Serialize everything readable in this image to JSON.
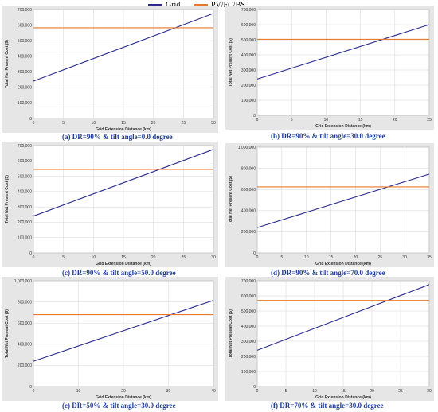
{
  "legend": {
    "series": [
      {
        "name": "Grid",
        "color": "#2b2b8c"
      },
      {
        "name": "PV/FC/BS",
        "color": "#e8792a"
      }
    ]
  },
  "chart_data": [
    {
      "type": "line",
      "caption": "(a) DR=90% & tilt angle=0.0 degree",
      "xlabel": "Grid Extension Distance (km)",
      "ylabel": "Total Net Present Cost ($)",
      "xlim": [
        0,
        30
      ],
      "xticks": [
        0,
        5,
        10,
        15,
        20,
        25,
        30
      ],
      "ylim": [
        0,
        700000
      ],
      "yticks": [
        0,
        100000,
        200000,
        300000,
        400000,
        500000,
        600000,
        700000
      ],
      "ytick_labels": [
        "0",
        "100,000",
        "200,000",
        "300,000",
        "400,000",
        "500,000",
        "600,000",
        "700,000"
      ],
      "series": [
        {
          "name": "Grid",
          "x": [
            0,
            30
          ],
          "y": [
            240000,
            675000
          ]
        },
        {
          "name": "PV/FC/BS",
          "x": [
            0,
            30
          ],
          "y": [
            583000,
            583000
          ]
        }
      ]
    },
    {
      "type": "line",
      "caption": "(b) DR=90% & tilt angle=30.0 degree",
      "xlabel": "Grid Extension Distance (km)",
      "ylabel": "Total Net Present Cost ($)",
      "xlim": [
        0,
        25
      ],
      "xticks": [
        0,
        5,
        10,
        15,
        20,
        25
      ],
      "ylim": [
        0,
        700000
      ],
      "yticks": [
        0,
        100000,
        200000,
        300000,
        400000,
        500000,
        600000,
        700000
      ],
      "ytick_labels": [
        "0",
        "100,000",
        "200,000",
        "300,000",
        "400,000",
        "500,000",
        "600,000",
        "700,000"
      ],
      "series": [
        {
          "name": "Grid",
          "x": [
            0,
            25
          ],
          "y": [
            240000,
            600000
          ]
        },
        {
          "name": "PV/FC/BS",
          "x": [
            0,
            25
          ],
          "y": [
            503000,
            503000
          ]
        }
      ]
    },
    {
      "type": "line",
      "caption": "(c) DR=90% & tilt angle=50.0 degree",
      "xlabel": "Grid Extension Distance (km)",
      "ylabel": "Total Net Present Cost ($)",
      "xlim": [
        0,
        30
      ],
      "xticks": [
        0,
        5,
        10,
        15,
        20,
        25,
        30
      ],
      "ylim": [
        0,
        700000
      ],
      "yticks": [
        0,
        100000,
        200000,
        300000,
        400000,
        500000,
        600000,
        700000
      ],
      "ytick_labels": [
        "0",
        "100,000",
        "200,000",
        "300,000",
        "400,000",
        "500,000",
        "600,000",
        "700,000"
      ],
      "series": [
        {
          "name": "Grid",
          "x": [
            0,
            30
          ],
          "y": [
            240000,
            675000
          ]
        },
        {
          "name": "PV/FC/BS",
          "x": [
            0,
            30
          ],
          "y": [
            545000,
            545000
          ]
        }
      ]
    },
    {
      "type": "line",
      "caption": "(d) DR=90% & tilt angle=70.0 degree",
      "xlabel": "Grid Extension Distance (km)",
      "ylabel": "Total Net Present Cost ($)",
      "xlim": [
        0,
        35
      ],
      "xticks": [
        0,
        5,
        10,
        15,
        20,
        25,
        30,
        35
      ],
      "ylim": [
        0,
        1000000
      ],
      "yticks": [
        0,
        200000,
        400000,
        600000,
        800000,
        1000000
      ],
      "ytick_labels": [
        "0",
        "200,000",
        "400,000",
        "600,000",
        "800,000",
        "1,000,000"
      ],
      "series": [
        {
          "name": "Grid",
          "x": [
            0,
            35
          ],
          "y": [
            240000,
            745000
          ]
        },
        {
          "name": "PV/FC/BS",
          "x": [
            0,
            35
          ],
          "y": [
            625000,
            625000
          ]
        }
      ]
    },
    {
      "type": "line",
      "caption": "(e) DR=50% & tilt angle=30.0 degree",
      "xlabel": "Grid Extension Distance (km)",
      "ylabel": "Total Net Present Cost ($)",
      "xlim": [
        0,
        40
      ],
      "xticks": [
        0,
        10,
        20,
        30,
        40
      ],
      "ylim": [
        0,
        1000000
      ],
      "yticks": [
        0,
        200000,
        400000,
        600000,
        800000,
        1000000
      ],
      "ytick_labels": [
        "0",
        "200,000",
        "400,000",
        "600,000",
        "800,000",
        "1,000,000"
      ],
      "series": [
        {
          "name": "Grid",
          "x": [
            0,
            40
          ],
          "y": [
            240000,
            815000
          ]
        },
        {
          "name": "PV/FC/BS",
          "x": [
            0,
            40
          ],
          "y": [
            680000,
            680000
          ]
        }
      ]
    },
    {
      "type": "line",
      "caption": "(f) DR=70% & tilt angle=30.0 degree",
      "xlabel": "Grid Extension Distance (km)",
      "ylabel": "Total Net Present Cost ($)",
      "xlim": [
        0,
        30
      ],
      "xticks": [
        0,
        5,
        10,
        15,
        20,
        25,
        30
      ],
      "ylim": [
        0,
        700000
      ],
      "yticks": [
        0,
        100000,
        200000,
        300000,
        400000,
        500000,
        600000,
        700000
      ],
      "ytick_labels": [
        "0",
        "100,000",
        "200,000",
        "300,000",
        "400,000",
        "500,000",
        "600,000",
        "700,000"
      ],
      "series": [
        {
          "name": "Grid",
          "x": [
            0,
            30
          ],
          "y": [
            240000,
            675000
          ]
        },
        {
          "name": "PV/FC/BS",
          "x": [
            0,
            30
          ],
          "y": [
            570000,
            570000
          ]
        }
      ]
    }
  ]
}
